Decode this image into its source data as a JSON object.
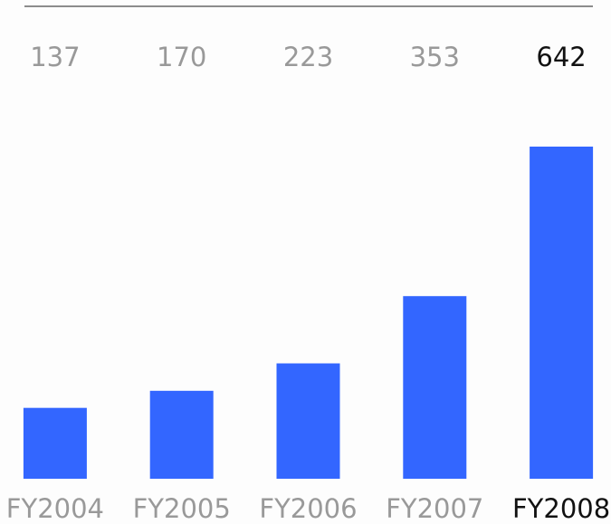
{
  "chart_data": {
    "type": "bar",
    "categories": [
      "FY2004",
      "FY2005",
      "FY2006",
      "FY2007",
      "FY2008"
    ],
    "values": [
      137,
      170,
      223,
      353,
      642
    ],
    "color": "#3366ff",
    "label_color": "#999999",
    "highlight_color": "#111111",
    "highlight": 4
  }
}
